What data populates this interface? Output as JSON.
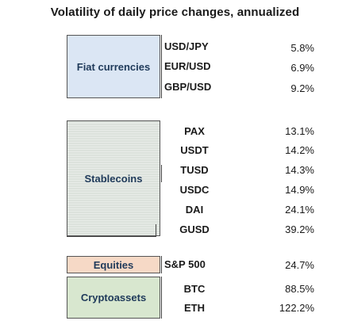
{
  "chart_data": {
    "type": "table",
    "title": "Volatility of daily price changes, annualized",
    "groups": [
      {
        "category": "Fiat currencies",
        "rows": [
          {
            "asset": "USD/JPY",
            "volatility": "5.8%"
          },
          {
            "asset": "EUR/USD",
            "volatility": "6.9%"
          },
          {
            "asset": "GBP/USD",
            "volatility": "9.2%"
          }
        ]
      },
      {
        "category": "Stablecoins",
        "rows": [
          {
            "asset": "PAX",
            "volatility": "13.1%"
          },
          {
            "asset": "USDT",
            "volatility": "14.2%"
          },
          {
            "asset": "TUSD",
            "volatility": "14.3%"
          },
          {
            "asset": "USDC",
            "volatility": "14.9%"
          },
          {
            "asset": "DAI",
            "volatility": "24.1%"
          },
          {
            "asset": "GUSD",
            "volatility": "39.2%"
          }
        ]
      },
      {
        "category": "Equities",
        "rows": [
          {
            "asset": "S&P 500",
            "volatility": "24.7%"
          }
        ]
      },
      {
        "category": "Cryptoassets",
        "rows": [
          {
            "asset": "BTC",
            "volatility": "88.5%"
          },
          {
            "asset": "ETH",
            "volatility": "122.2%"
          }
        ]
      }
    ]
  }
}
